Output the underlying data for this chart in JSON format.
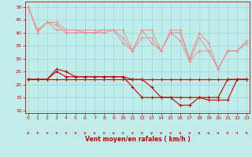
{
  "xlabel": "Vent moyen/en rafales ( km/h )",
  "bg_color": "#c0ecec",
  "grid_color": "#98d8d8",
  "x_ticks": [
    0,
    1,
    2,
    3,
    4,
    5,
    6,
    7,
    8,
    9,
    10,
    11,
    12,
    13,
    14,
    15,
    16,
    17,
    18,
    19,
    20,
    21,
    22,
    23
  ],
  "y_ticks": [
    10,
    15,
    20,
    25,
    30,
    35,
    40,
    45,
    50
  ],
  "ylim": [
    9,
    52
  ],
  "xlim": [
    -0.3,
    23.3
  ],
  "series_light": [
    [
      50,
      41,
      44,
      44,
      41,
      41,
      41,
      41,
      41,
      41,
      41,
      33,
      41,
      41,
      33,
      41,
      41,
      30,
      40,
      36,
      26,
      33,
      33,
      37
    ],
    [
      50,
      40,
      44,
      43,
      40,
      40,
      40,
      40,
      41,
      41,
      36,
      33,
      41,
      36,
      33,
      40,
      40,
      29,
      33,
      33,
      26,
      33,
      33,
      36
    ],
    [
      50,
      41,
      44,
      41,
      41,
      41,
      40,
      40,
      40,
      41,
      38,
      33,
      38,
      38,
      33,
      40,
      37,
      29,
      38,
      33,
      26,
      33,
      33,
      36
    ]
  ],
  "series_dark": [
    [
      22,
      22,
      22,
      22,
      22,
      22,
      22,
      22,
      22,
      22,
      22,
      22,
      22,
      22,
      22,
      22,
      22,
      22,
      22,
      22,
      22,
      22,
      22,
      22
    ],
    [
      22,
      22,
      22,
      25,
      23,
      23,
      23,
      23,
      23,
      23,
      23,
      22,
      22,
      19,
      15,
      15,
      15,
      15,
      15,
      15,
      15,
      22,
      22,
      22
    ],
    [
      22,
      22,
      22,
      26,
      25,
      23,
      23,
      23,
      23,
      23,
      23,
      19,
      15,
      15,
      15,
      15,
      12,
      12,
      15,
      14,
      14,
      14,
      22,
      22
    ]
  ],
  "light_color": "#e89090",
  "dark_color": "#cc0000",
  "arrow_angles": [
    -45,
    -40,
    -35,
    -30,
    -25,
    -20,
    -15,
    -10,
    -5,
    0,
    5,
    10,
    15,
    15,
    15,
    20,
    25,
    30,
    35,
    40,
    45,
    50,
    55,
    60
  ]
}
